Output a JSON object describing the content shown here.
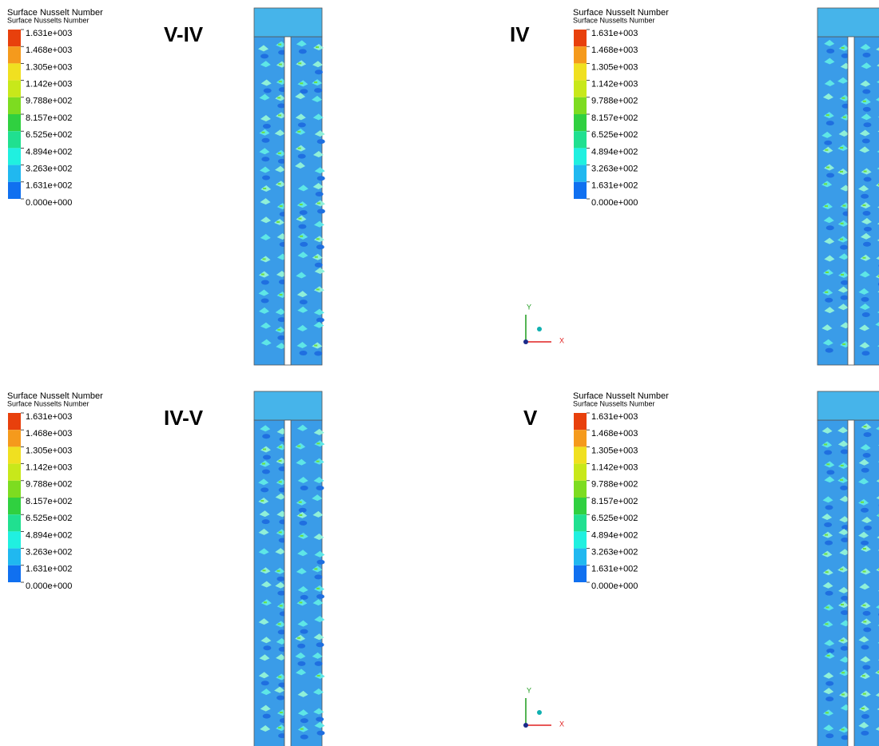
{
  "panels": [
    {
      "label": "V-IV",
      "legend_title": "Surface Nusselt Number",
      "legend_subtitle": "Surface Nusselts Number",
      "levels": [
        "1.631e+003",
        "1.468e+003",
        "1.305e+003",
        "1.142e+003",
        "9.788e+002",
        "8.157e+002",
        "6.525e+002",
        "4.894e+002",
        "3.263e+002",
        "1.631e+002",
        "0.000e+000"
      ]
    },
    {
      "label": "IV",
      "legend_title": "Surface Nusselt Number",
      "legend_subtitle": "Surface Nusselts Number",
      "levels": [
        "1.631e+003",
        "1.468e+003",
        "1.305e+003",
        "1.142e+003",
        "9.788e+002",
        "8.157e+002",
        "6.525e+002",
        "4.894e+002",
        "3.263e+002",
        "1.631e+002",
        "0.000e+000"
      ],
      "triad": {
        "y": "Y",
        "x": "X"
      }
    },
    {
      "label": "IV-V",
      "legend_title": "Surface Nusselt Number",
      "legend_subtitle": "Surface Nusselts Number",
      "levels": [
        "1.631e+003",
        "1.468e+003",
        "1.305e+003",
        "1.142e+003",
        "9.788e+002",
        "8.157e+002",
        "6.525e+002",
        "4.894e+002",
        "3.263e+002",
        "1.631e+002",
        "0.000e+000"
      ]
    },
    {
      "label": "V",
      "legend_title": "Surface Nusselt Number",
      "legend_subtitle": "Surface Nusselts Number",
      "levels": [
        "1.631e+003",
        "1.468e+003",
        "1.305e+003",
        "1.142e+003",
        "9.788e+002",
        "8.157e+002",
        "6.525e+002",
        "4.894e+002",
        "3.263e+002",
        "1.631e+002",
        "0.000e+000"
      ],
      "triad": {
        "y": "Y",
        "x": "X"
      }
    }
  ]
}
